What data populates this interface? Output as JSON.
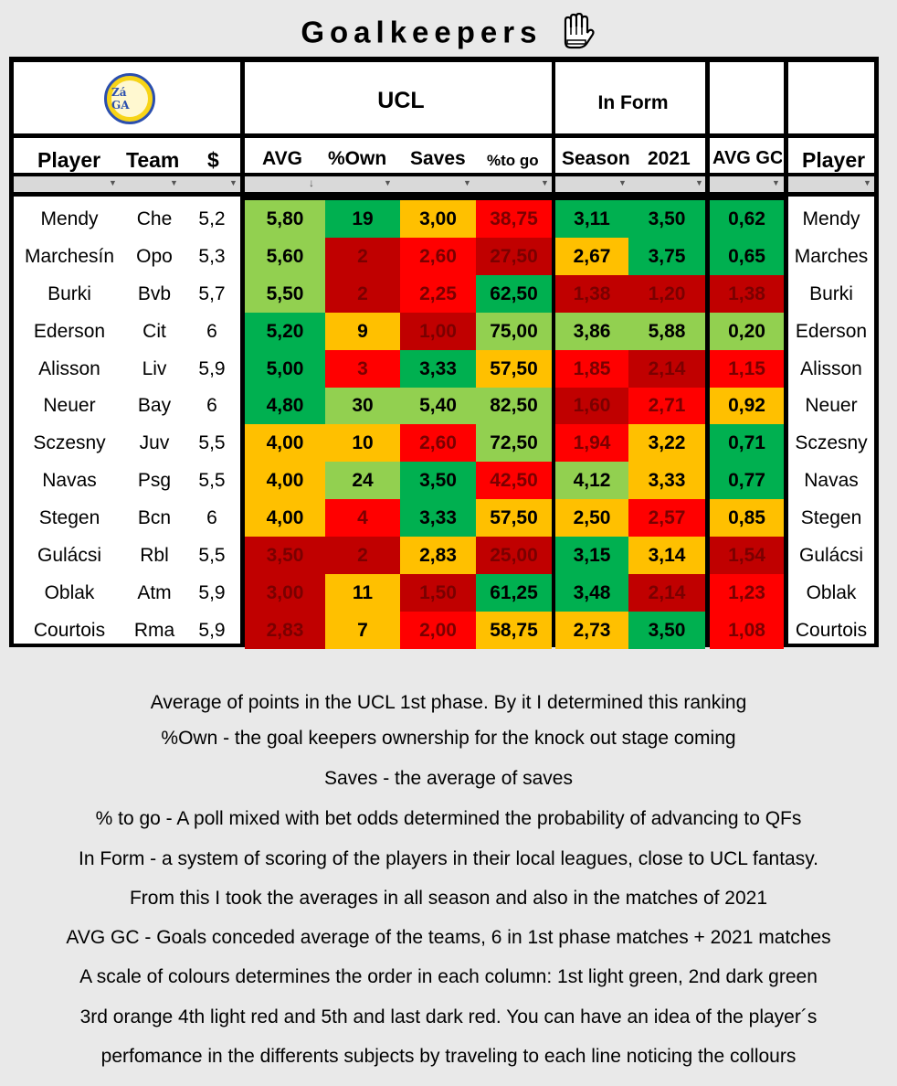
{
  "title": "Goalkeepers",
  "logo_text": "Zá GA",
  "group_headers": {
    "ucl": "UCL",
    "inform": "In Form"
  },
  "columns": [
    "Player",
    "Team",
    "$",
    "AVG",
    "%Own",
    "Saves",
    "%to go",
    "Season",
    "2021",
    "AVG GC",
    "Player"
  ],
  "sort_indicator": "↓",
  "colors": {
    "light_green": "#92d050",
    "dark_green": "#00b050",
    "orange": "#ffc000",
    "light_red": "#ff0000",
    "dark_red": "#c00000"
  },
  "rows": [
    {
      "player": "Mendy",
      "team": "Che",
      "price": "5,2",
      "avg": "5,80",
      "own": "19",
      "saves": "3,00",
      "togo": "38,75",
      "season": "3,11",
      "y2021": "3,50",
      "gc": "0,62",
      "player2": "Mendy",
      "c": [
        "lg",
        "dg",
        "or",
        "lr",
        "dg",
        "dg",
        "dg"
      ]
    },
    {
      "player": "Marchesín",
      "team": "Opo",
      "price": "5,3",
      "avg": "5,60",
      "own": "2",
      "saves": "2,60",
      "togo": "27,50",
      "season": "2,67",
      "y2021": "3,75",
      "gc": "0,65",
      "player2": "Marches",
      "c": [
        "lg",
        "dr",
        "lr",
        "dr",
        "or",
        "dg",
        "dg"
      ]
    },
    {
      "player": "Burki",
      "team": "Bvb",
      "price": "5,7",
      "avg": "5,50",
      "own": "2",
      "saves": "2,25",
      "togo": "62,50",
      "season": "1,38",
      "y2021": "1,20",
      "gc": "1,38",
      "player2": "Burki",
      "c": [
        "lg",
        "dr",
        "lr",
        "dg",
        "dr",
        "dr",
        "dr"
      ]
    },
    {
      "player": "Ederson",
      "team": "Cit",
      "price": "6",
      "avg": "5,20",
      "own": "9",
      "saves": "1,00",
      "togo": "75,00",
      "season": "3,86",
      "y2021": "5,88",
      "gc": "0,20",
      "player2": "Ederson",
      "c": [
        "dg",
        "or",
        "dr",
        "lg",
        "lg",
        "lg",
        "lg"
      ]
    },
    {
      "player": "Alisson",
      "team": "Liv",
      "price": "5,9",
      "avg": "5,00",
      "own": "3",
      "saves": "3,33",
      "togo": "57,50",
      "season": "1,85",
      "y2021": "2,14",
      "gc": "1,15",
      "player2": "Alisson",
      "c": [
        "dg",
        "lr",
        "dg",
        "or",
        "lr",
        "dr",
        "lr"
      ]
    },
    {
      "player": "Neuer",
      "team": "Bay",
      "price": "6",
      "avg": "4,80",
      "own": "30",
      "saves": "5,40",
      "togo": "82,50",
      "season": "1,60",
      "y2021": "2,71",
      "gc": "0,92",
      "player2": "Neuer",
      "c": [
        "dg",
        "lg",
        "lg",
        "lg",
        "dr",
        "lr",
        "or"
      ]
    },
    {
      "player": "Sczesny",
      "team": "Juv",
      "price": "5,5",
      "avg": "4,00",
      "own": "10",
      "saves": "2,60",
      "togo": "72,50",
      "season": "1,94",
      "y2021": "3,22",
      "gc": "0,71",
      "player2": "Sczesny",
      "c": [
        "or",
        "or",
        "lr",
        "lg",
        "lr",
        "or",
        "dg"
      ]
    },
    {
      "player": "Navas",
      "team": "Psg",
      "price": "5,5",
      "avg": "4,00",
      "own": "24",
      "saves": "3,50",
      "togo": "42,50",
      "season": "4,12",
      "y2021": "3,33",
      "gc": "0,77",
      "player2": "Navas",
      "c": [
        "or",
        "lg",
        "dg",
        "lr",
        "lg",
        "or",
        "dg"
      ]
    },
    {
      "player": "Stegen",
      "team": "Bcn",
      "price": "6",
      "avg": "4,00",
      "own": "4",
      "saves": "3,33",
      "togo": "57,50",
      "season": "2,50",
      "y2021": "2,57",
      "gc": "0,85",
      "player2": "Stegen",
      "c": [
        "or",
        "lr",
        "dg",
        "or",
        "or",
        "lr",
        "or"
      ]
    },
    {
      "player": "Gulácsi",
      "team": "Rbl",
      "price": "5,5",
      "avg": "3,50",
      "own": "2",
      "saves": "2,83",
      "togo": "25,00",
      "season": "3,15",
      "y2021": "3,14",
      "gc": "1,54",
      "player2": "Gulácsi",
      "c": [
        "dr",
        "dr",
        "or",
        "dr",
        "dg",
        "or",
        "dr"
      ]
    },
    {
      "player": "Oblak",
      "team": "Atm",
      "price": "5,9",
      "avg": "3,00",
      "own": "11",
      "saves": "1,50",
      "togo": "61,25",
      "season": "3,48",
      "y2021": "2,14",
      "gc": "1,23",
      "player2": "Oblak",
      "c": [
        "dr",
        "or",
        "dr",
        "dg",
        "dg",
        "dr",
        "lr"
      ]
    },
    {
      "player": "Courtois",
      "team": "Rma",
      "price": "5,9",
      "avg": "2,83",
      "own": "7",
      "saves": "2,00",
      "togo": "58,75",
      "season": "2,73",
      "y2021": "3,50",
      "gc": "1,08",
      "player2": "Courtois",
      "c": [
        "dr",
        "or",
        "lr",
        "or",
        "or",
        "dg",
        "lr"
      ]
    }
  ],
  "notes": [
    "Average of points in the UCL 1st phase. By it I determined this ranking",
    "%Own - the goal keepers ownership for the knock out stage coming",
    "Saves - the average of saves",
    "% to go - A poll mixed with bet odds determined the probability of advancing to QFs",
    "In Form - a system of scoring of the players  in their local leagues, close to UCL fantasy.",
    "From this I took the averages in all season and also in the matches of 2021",
    "AVG GC - Goals conceded average of the teams, 6 in 1st phase matches + 2021 matches",
    "A scale of colours determines the order in each column: 1st light green, 2nd dark green",
    "3rd orange 4th light red and 5th and last dark red. You can have an idea of the player´s",
    "perfomance in the differents subjects by traveling to each line noticing the collours"
  ]
}
